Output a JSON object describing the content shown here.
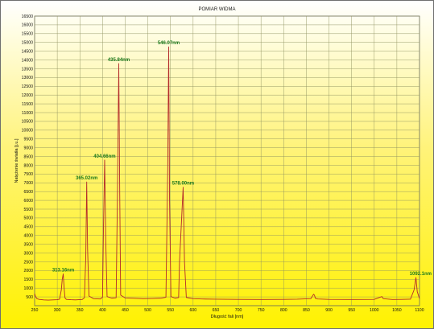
{
  "chart_data": {
    "type": "line",
    "title": "POMIAR WIDMA",
    "xlabel": "Długość fali [nm]",
    "ylabel": "Natężenie światła [j.u.]",
    "xlim": [
      250,
      1100
    ],
    "ylim": [
      0,
      16500
    ],
    "xticks": [
      250,
      300,
      350,
      400,
      450,
      500,
      550,
      600,
      650,
      700,
      750,
      800,
      850,
      900,
      950,
      1000,
      1050,
      1100
    ],
    "yticks": [
      500,
      1000,
      1500,
      2000,
      2500,
      3000,
      3500,
      4000,
      4500,
      5000,
      5500,
      6000,
      6500,
      7000,
      7500,
      8000,
      8500,
      9000,
      9500,
      10000,
      10500,
      11000,
      11500,
      12000,
      12500,
      13000,
      13500,
      14000,
      14500,
      15000,
      15500,
      16000,
      16500
    ],
    "grid": true,
    "colors": {
      "line": "#b42a2a",
      "grid": "#8e9260",
      "annotation": "#1d7a1d",
      "axis_text": "#111111"
    },
    "series": [
      {
        "x": [
          250,
          252,
          255,
          260,
          270,
          280,
          290,
          300,
          305,
          309,
          311,
          313.16,
          315,
          317,
          320,
          330,
          340,
          355,
          360,
          363,
          365.02,
          367,
          370,
          380,
          395,
          400,
          402,
          404.66,
          407,
          410,
          420,
          430,
          433,
          435.84,
          438,
          440,
          450,
          470,
          490,
          510,
          530,
          540,
          544,
          546.07,
          548,
          551,
          560,
          568,
          570,
          578.0,
          581,
          585,
          600,
          620,
          650,
          700,
          750,
          800,
          830,
          860,
          866,
          868,
          870,
          875,
          900,
          950,
          1000,
          1015,
          1017,
          1020,
          1040,
          1060,
          1080,
          1088,
          1092.1,
          1095,
          1100
        ],
        "y": [
          680,
          520,
          400,
          360,
          330,
          320,
          330,
          340,
          370,
          900,
          1500,
          1810,
          1050,
          450,
          360,
          340,
          330,
          350,
          450,
          2800,
          7050,
          3200,
          550,
          400,
          380,
          480,
          4300,
          8300,
          3800,
          520,
          430,
          450,
          6500,
          13800,
          6300,
          600,
          440,
          420,
          400,
          410,
          430,
          480,
          7800,
          14750,
          6000,
          520,
          430,
          460,
          2500,
          6750,
          2500,
          470,
          400,
          380,
          370,
          360,
          350,
          360,
          370,
          400,
          650,
          600,
          420,
          380,
          360,
          350,
          360,
          500,
          520,
          400,
          350,
          360,
          370,
          900,
          1600,
          800,
          400
        ]
      }
    ],
    "annotations": [
      {
        "text": "313.16nm",
        "x": 313.16,
        "y": 1810
      },
      {
        "text": "365.02nm",
        "x": 365.02,
        "y": 7050
      },
      {
        "text": "404.66nm",
        "x": 404.66,
        "y": 8300
      },
      {
        "text": "435.84nm",
        "x": 435.84,
        "y": 13800
      },
      {
        "text": "546.07nm",
        "x": 546.07,
        "y": 14750
      },
      {
        "text": "578.00nm",
        "x": 578.0,
        "y": 6750
      },
      {
        "text": "1092.1nm",
        "x": 1092.1,
        "y": 1600
      }
    ]
  }
}
